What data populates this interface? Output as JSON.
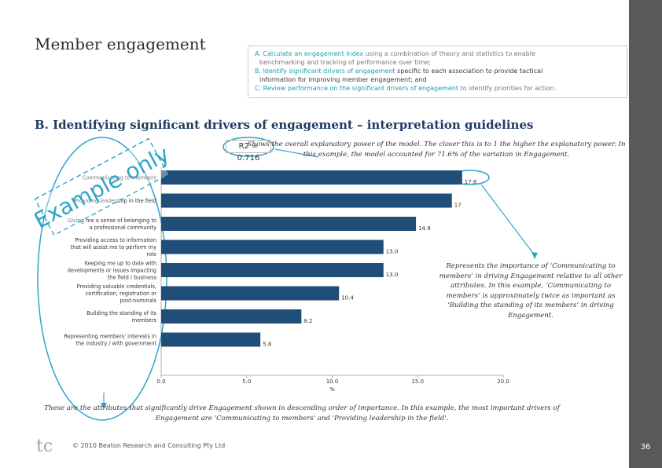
{
  "slide": {
    "title": "Member engagement",
    "page_number": "36",
    "footer": "© 2010 Beaton Research and Consulting Pty Ltd",
    "logo_text": "tc"
  },
  "objectives": {
    "a_lead": "A. Calculate an engagement index",
    "a_rest": " using a combination of theory and statistics to enable",
    "a_line2": "benchmarking and tracking of performance over time;",
    "b_lead": "B. Identify significant drivers of engagement",
    "b_rest": " specific to each association to provide tactical",
    "b_line2": "information for improving member engagement; and",
    "c_lead": "C. Review performance on the significant drivers of engagement",
    "c_rest": " to identify priorities for action."
  },
  "section_heading": "B. Identifying significant drivers of engagement – interpretation guidelines",
  "stamp": "Example only",
  "r2_label": "R2 = 0.716",
  "notes": {
    "r2": "Shows the overall explanatory power of the model. The closer this is to 1 the higher the explanatory power. In this example, the model accounted for 71.6% of the variation in Engagement.",
    "importance": "Represents the importance of ‘Communicating to members’ in driving Engagement relative to all other attributes. In this example, ‘Communicating to members’ is approximately twice as important as ‘Building the standing of its members’ in driving Engagement.",
    "bottom": "These are the attributes that significantly drive Engagement shown in descending order of importance. In this example, the most important drivers of Engagement are 'Communicating to members' and 'Providing leadership in the field'."
  },
  "colors": {
    "bar": "#1f4e79",
    "accent": "#2fa4c8",
    "heading": "#1d3d63",
    "sidebar": "#595959"
  },
  "chart_data": {
    "type": "bar",
    "orientation": "horizontal",
    "categories": [
      "Communicating to members",
      "Providing leadership in the field",
      "Giving me a sense of belonging to a professional community",
      "Providing access to information that will assist me to perform my role",
      "Keeping me up to date with developments or issues impacting the field / business",
      "Providing valuable credentials, certification, registration or post-nominals",
      "Building the standing of its members",
      "Representing members' interests in the industry / with government"
    ],
    "values": [
      17.6,
      17.0,
      14.9,
      13.0,
      13.0,
      10.4,
      8.2,
      5.8
    ],
    "value_labels": [
      "17.6",
      "17",
      "14.9",
      "13.0",
      "13.0",
      "10.4",
      "8.2",
      "5.8"
    ],
    "xlabel": "%",
    "xlim": [
      0,
      20
    ],
    "xticks": [
      "0.0",
      "5.0",
      "10.0",
      "15.0",
      "20.0"
    ],
    "title": "",
    "legend": "none"
  }
}
